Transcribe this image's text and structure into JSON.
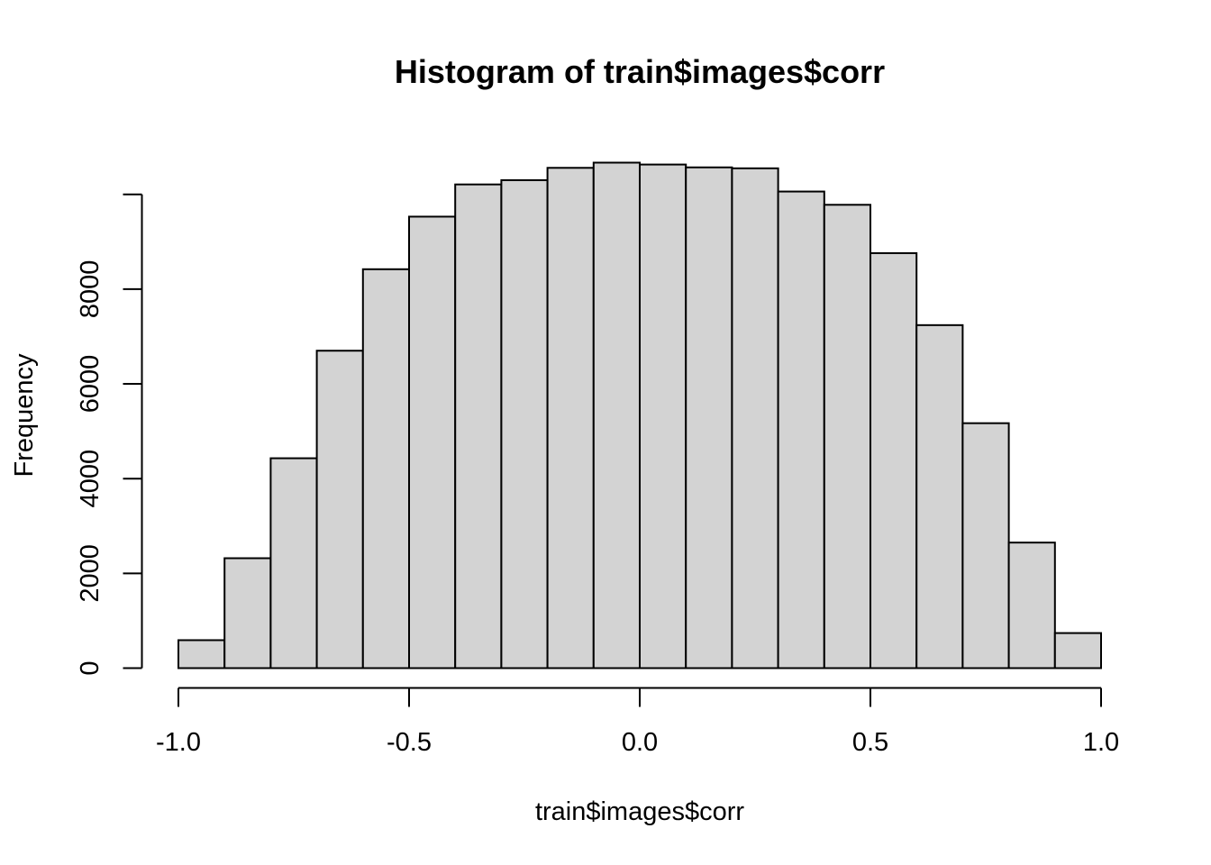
{
  "chart_data": {
    "type": "bar",
    "title": "Histogram of train$images$corr",
    "xlabel": "train$images$corr",
    "ylabel": "Frequency",
    "bin_edges": [
      -1.0,
      -0.9,
      -0.8,
      -0.7,
      -0.6,
      -0.5,
      -0.4,
      -0.3,
      -0.2,
      -0.1,
      0.0,
      0.1,
      0.2,
      0.3,
      0.4,
      0.5,
      0.6,
      0.7,
      0.8,
      0.9,
      1.0
    ],
    "values": [
      590,
      2320,
      4430,
      6700,
      8420,
      9530,
      10210,
      10300,
      10560,
      10670,
      10630,
      10570,
      10550,
      10060,
      9780,
      8760,
      7240,
      5170,
      2650,
      740
    ],
    "xlim": [
      -1.0,
      1.0
    ],
    "ylim": [
      0,
      10670
    ],
    "x_ticks": [
      -1.0,
      -0.5,
      0.0,
      0.5,
      1.0
    ],
    "x_tick_labels": [
      "-1.0",
      "-0.5",
      "0.0",
      "0.5",
      "1.0"
    ],
    "y_ticks": [
      0,
      2000,
      4000,
      6000,
      8000,
      10000
    ],
    "y_tick_labels": [
      "0",
      "2000",
      "4000",
      "6000",
      "8000",
      ""
    ],
    "bar_fill": "#d3d3d3",
    "bar_stroke": "#000000",
    "grid": false,
    "legend": "none"
  }
}
